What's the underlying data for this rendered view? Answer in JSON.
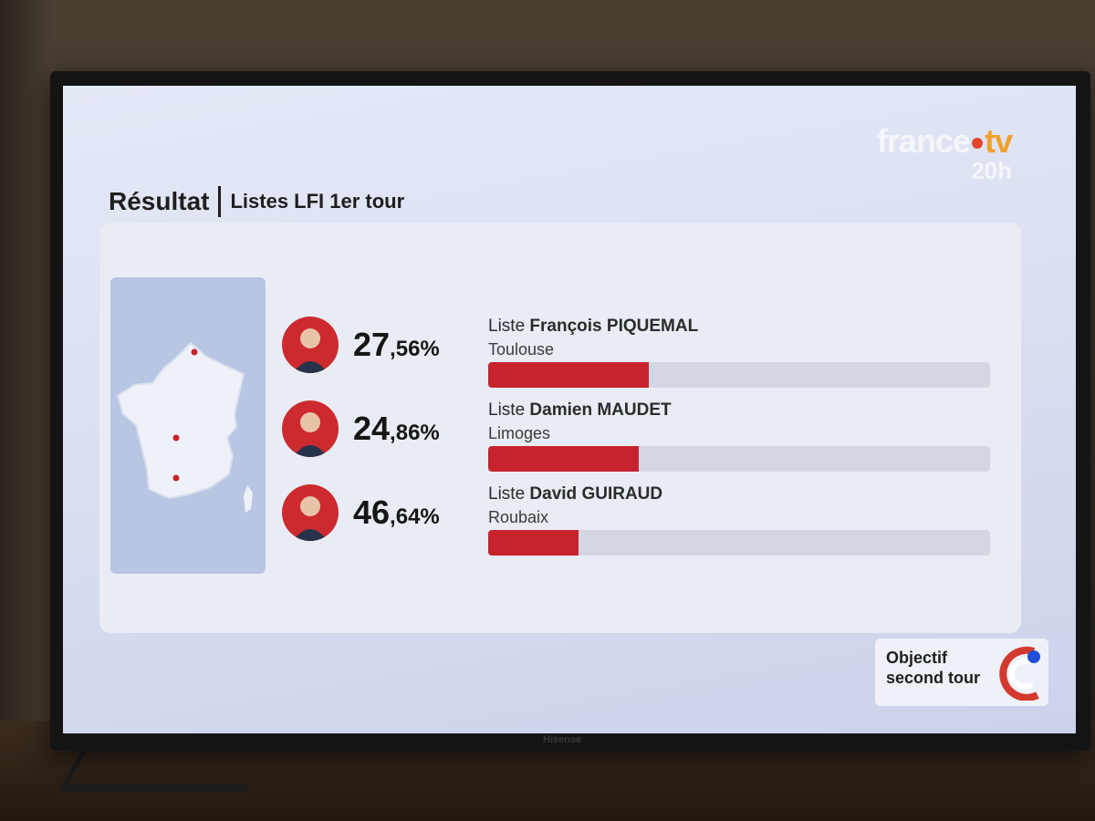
{
  "broadcast": {
    "logo_text": "france",
    "logo_suffix": "tv",
    "edition": "20h",
    "device_brand": "Hisense"
  },
  "header": {
    "title": "Résultat",
    "subtitle": "Listes LFI 1er tour"
  },
  "results": [
    {
      "prefix": "Liste",
      "candidate": "François PIQUEMAL",
      "city": "Toulouse",
      "pct_int": "27",
      "pct_dec": ",56%",
      "bar_fraction": 0.32
    },
    {
      "prefix": "Liste",
      "candidate": "Damien MAUDET",
      "city": "Limoges",
      "pct_int": "24",
      "pct_dec": ",86%",
      "bar_fraction": 0.3
    },
    {
      "prefix": "Liste",
      "candidate": "David GUIRAUD",
      "city": "Roubaix",
      "pct_int": "46",
      "pct_dec": ",64%",
      "bar_fraction": 0.18
    }
  ],
  "footer": {
    "objectif_line1": "Objectif",
    "objectif_line2": "second tour"
  },
  "colors": {
    "accent_red": "#c7232e",
    "avatar_red": "#cc2a2f",
    "logo_orange": "#f0a02b",
    "bar_track": "#d3d7e3",
    "flag_blue": "#1f4fd8"
  }
}
